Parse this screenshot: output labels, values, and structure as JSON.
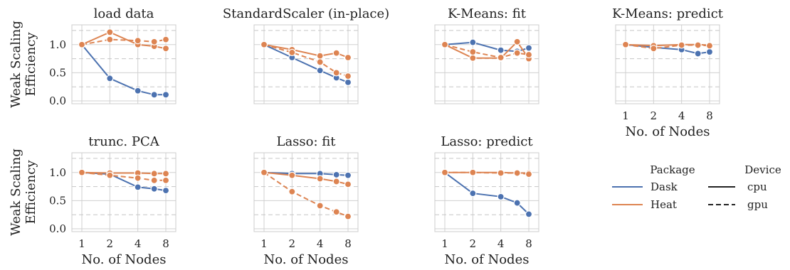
{
  "chart_data": {
    "type": "line",
    "xlabel": "No. of Nodes",
    "ylabel_line1": "Weak Scaling",
    "ylabel_line2": "Efficiency",
    "x_ticks": [
      1,
      2,
      4,
      8
    ],
    "x_tick_labels": [
      "1",
      "2",
      "4",
      "8"
    ],
    "x_scale": "log2",
    "xlim": [
      1,
      8
    ],
    "y_ticks": [
      0.0,
      0.5,
      1.0
    ],
    "y_tick_labels": [
      "0.0",
      "0.5",
      "1.0"
    ],
    "ylim": [
      -0.05,
      1.35
    ],
    "reference_lines_y": [
      0.25,
      0.75,
      1.25
    ],
    "colors": {
      "Dask": "#4c72b0",
      "Heat": "#dd8452"
    },
    "legend": {
      "package_title": "Package",
      "device_title": "Device",
      "packages": [
        "Dask",
        "Heat"
      ],
      "devices": [
        "cpu",
        "gpu"
      ]
    },
    "panels": [
      {
        "title": "load data",
        "series": [
          {
            "package": "Dask",
            "device": "cpu",
            "x": [
              1,
              2,
              4,
              6,
              8
            ],
            "y": [
              1.0,
              0.4,
              0.18,
              0.11,
              0.11
            ]
          },
          {
            "package": "Heat",
            "device": "cpu",
            "x": [
              1,
              2,
              4,
              6,
              8
            ],
            "y": [
              1.0,
              1.22,
              1.0,
              0.97,
              0.93
            ]
          },
          {
            "package": "Heat",
            "device": "gpu",
            "x": [
              1,
              2,
              4,
              6,
              8
            ],
            "y": [
              1.0,
              1.09,
              1.07,
              1.05,
              1.09
            ]
          }
        ]
      },
      {
        "title": "StandardScaler (in-place)",
        "series": [
          {
            "package": "Dask",
            "device": "cpu",
            "x": [
              1,
              2,
              4,
              6,
              8
            ],
            "y": [
              1.0,
              0.77,
              0.54,
              0.41,
              0.33
            ]
          },
          {
            "package": "Heat",
            "device": "cpu",
            "x": [
              1,
              2,
              4,
              6,
              8
            ],
            "y": [
              1.0,
              0.91,
              0.8,
              0.85,
              0.77
            ]
          },
          {
            "package": "Heat",
            "device": "gpu",
            "x": [
              1,
              2,
              4,
              6,
              8
            ],
            "y": [
              1.0,
              0.86,
              0.69,
              0.5,
              0.44
            ]
          }
        ]
      },
      {
        "title": "K-Means: fit",
        "series": [
          {
            "package": "Dask",
            "device": "cpu",
            "x": [
              1,
              2,
              4,
              6,
              8
            ],
            "y": [
              1.0,
              1.04,
              0.9,
              0.88,
              0.94
            ]
          },
          {
            "package": "Heat",
            "device": "cpu",
            "x": [
              1,
              2,
              4,
              6,
              8
            ],
            "y": [
              1.0,
              0.76,
              0.76,
              1.05,
              0.75
            ]
          },
          {
            "package": "Heat",
            "device": "gpu",
            "x": [
              1,
              2,
              4,
              6,
              8
            ],
            "y": [
              1.0,
              0.87,
              0.77,
              0.85,
              0.82
            ]
          }
        ]
      },
      {
        "title": "K-Means: predict",
        "series": [
          {
            "package": "Dask",
            "device": "cpu",
            "x": [
              1,
              2,
              4,
              6,
              8
            ],
            "y": [
              1.0,
              0.95,
              0.91,
              0.84,
              0.87
            ]
          },
          {
            "package": "Heat",
            "device": "cpu",
            "x": [
              1,
              2,
              4,
              6,
              8
            ],
            "y": [
              1.0,
              0.98,
              1.0,
              1.0,
              0.99
            ]
          },
          {
            "package": "Heat",
            "device": "gpu",
            "x": [
              1,
              2,
              4,
              6,
              8
            ],
            "y": [
              1.0,
              0.93,
              0.99,
              0.99,
              0.98
            ]
          }
        ]
      },
      {
        "title": "trunc. PCA",
        "series": [
          {
            "package": "Dask",
            "device": "cpu",
            "x": [
              1,
              2,
              4,
              6,
              8
            ],
            "y": [
              1.0,
              0.97,
              0.74,
              0.71,
              0.68
            ]
          },
          {
            "package": "Heat",
            "device": "cpu",
            "x": [
              1,
              2,
              4,
              6,
              8
            ],
            "y": [
              1.0,
              0.99,
              0.99,
              0.98,
              0.98
            ]
          },
          {
            "package": "Heat",
            "device": "gpu",
            "x": [
              1,
              2,
              4,
              6,
              8
            ],
            "y": [
              1.0,
              0.95,
              0.9,
              0.86,
              0.86
            ]
          }
        ]
      },
      {
        "title": "Lasso: fit",
        "series": [
          {
            "package": "Dask",
            "device": "cpu",
            "x": [
              1,
              2,
              4,
              6,
              8
            ],
            "y": [
              1.0,
              0.98,
              0.98,
              0.96,
              0.95
            ]
          },
          {
            "package": "Heat",
            "device": "cpu",
            "x": [
              1,
              2,
              4,
              6,
              8
            ],
            "y": [
              1.0,
              0.95,
              0.89,
              0.84,
              0.79
            ]
          },
          {
            "package": "Heat",
            "device": "gpu",
            "x": [
              1,
              2,
              4,
              6,
              8
            ],
            "y": [
              1.0,
              0.66,
              0.41,
              0.3,
              0.22
            ]
          }
        ]
      },
      {
        "title": "Lasso: predict",
        "series": [
          {
            "package": "Dask",
            "device": "cpu",
            "x": [
              1,
              2,
              4,
              6,
              8
            ],
            "y": [
              1.0,
              0.63,
              0.57,
              0.46,
              0.26
            ]
          },
          {
            "package": "Heat",
            "device": "cpu",
            "x": [
              1,
              2,
              4,
              6,
              8
            ],
            "y": [
              1.0,
              1.0,
              1.0,
              0.99,
              0.99
            ]
          },
          {
            "package": "Heat",
            "device": "gpu",
            "x": [
              1,
              2,
              4,
              6,
              8
            ],
            "y": [
              1.0,
              1.0,
              0.99,
              0.99,
              0.97
            ]
          }
        ]
      }
    ]
  }
}
